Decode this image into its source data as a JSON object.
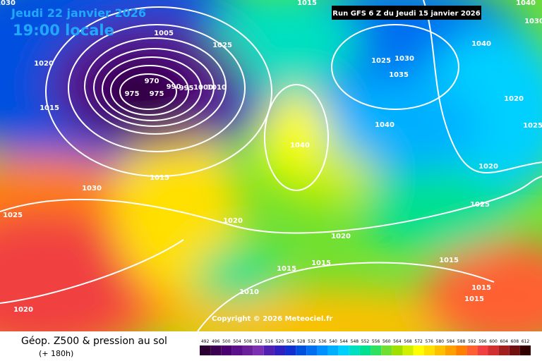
{
  "header": {
    "date": "Jeudi 22 janvier 2026",
    "time": "19:00 locale",
    "run": "Run GFS 6 Z du Jeudi 15 janvier 2026"
  },
  "copyright": "Copyright © 2026 Meteociel.fr",
  "footer": {
    "title": "Géop. Z500 & pression au sol",
    "lead": "(+ 180h)"
  },
  "legend": {
    "values": [
      492,
      496,
      500,
      504,
      508,
      512,
      516,
      520,
      524,
      528,
      532,
      536,
      540,
      544,
      548,
      552,
      556,
      560,
      564,
      568,
      572,
      576,
      580,
      584,
      588,
      592,
      596,
      600,
      604,
      608,
      612
    ],
    "colors": [
      "#2a0030",
      "#3b0050",
      "#4b0070",
      "#5a108a",
      "#6a209a",
      "#7a30b0",
      "#5020b0",
      "#3020c0",
      "#1030d0",
      "#0050e0",
      "#0070f0",
      "#0090ff",
      "#00b0ff",
      "#00d0ff",
      "#00e0c0",
      "#00e090",
      "#30e060",
      "#70e030",
      "#a0e000",
      "#d0f000",
      "#ffff00",
      "#ffe000",
      "#ffc000",
      "#ffa000",
      "#ff8000",
      "#ff6030",
      "#f04040",
      "#d03030",
      "#a02020",
      "#701010",
      "#300000"
    ]
  },
  "isobar_labels": [
    1030,
    1020,
    1005,
    1025,
    1015,
    1030,
    1025,
    1035,
    1040,
    970,
    975,
    975,
    990,
    995,
    1000,
    1010,
    1015,
    1040,
    1020,
    1025,
    1040,
    1015,
    1020,
    1030,
    1025,
    1025,
    1020,
    1020,
    1015,
    1015,
    1015,
    1010,
    1015,
    1015,
    1020,
    1040,
    1030
  ]
}
